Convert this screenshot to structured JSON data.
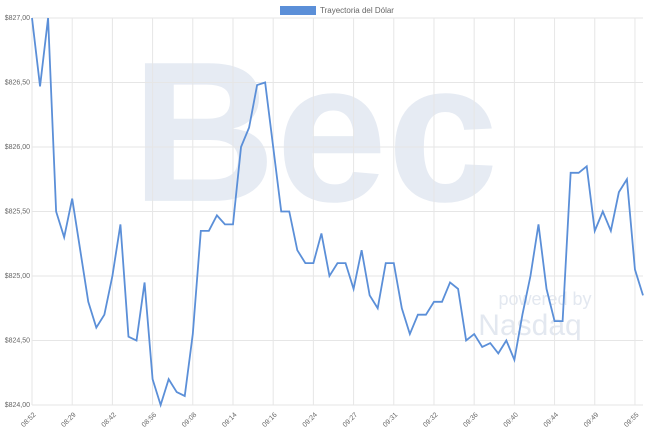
{
  "chart_data": {
    "type": "line",
    "legend": "Trayectoria del Dólar",
    "watermark": {
      "logo": "Bec",
      "tagline": "powered by",
      "brand": "Nasdaq"
    },
    "categories": [
      "08:52",
      null,
      null,
      null,
      null,
      "08:29",
      null,
      null,
      null,
      null,
      "08:42",
      null,
      null,
      null,
      null,
      "08:56",
      null,
      null,
      null,
      null,
      "09:08",
      null,
      null,
      null,
      null,
      "09:14",
      null,
      null,
      null,
      null,
      "09:16",
      null,
      null,
      null,
      null,
      "09:24",
      null,
      null,
      null,
      null,
      "09:27",
      null,
      null,
      null,
      null,
      "09:31",
      null,
      null,
      null,
      null,
      "09:32",
      null,
      null,
      null,
      null,
      "09:36",
      null,
      null,
      null,
      null,
      "09:40",
      null,
      null,
      null,
      null,
      "09:44",
      null,
      null,
      null,
      null,
      "09:49",
      null,
      null,
      null,
      null,
      "09:55",
      null
    ],
    "series": [
      {
        "name": "Trayectoria del Dólar",
        "color": "#5b8fd8",
        "values": [
          827,
          826.47,
          827,
          825.5,
          825.3,
          825.6,
          825.2,
          824.8,
          824.6,
          824.7,
          825,
          825.4,
          824.53,
          824.5,
          824.95,
          824.2,
          824,
          824.2,
          824.1,
          824.07,
          824.55,
          825.35,
          825.35,
          825.47,
          825.4,
          825.4,
          826,
          826.15,
          826.48,
          826.5,
          826,
          825.5,
          825.5,
          825.2,
          825.1,
          825.1,
          825.33,
          825,
          825.1,
          825.1,
          824.9,
          825.2,
          824.85,
          824.75,
          825.1,
          825.1,
          824.75,
          824.55,
          824.7,
          824.7,
          824.8,
          824.8,
          824.95,
          824.9,
          824.5,
          824.55,
          824.45,
          824.48,
          824.4,
          824.5,
          824.35,
          824.7,
          825,
          825.4,
          824.9,
          824.65,
          824.65,
          825.8,
          825.8,
          825.85,
          825.35,
          825.5,
          825.35,
          825.65,
          825.75,
          825.05,
          824.85
        ]
      }
    ],
    "ylim": [
      824,
      827
    ],
    "yticks": [
      {
        "value": 824,
        "label": "$824,00"
      },
      {
        "value": 824.5,
        "label": "$824,50"
      },
      {
        "value": 825,
        "label": "$825,00"
      },
      {
        "value": 825.5,
        "label": "$825,50"
      },
      {
        "value": 826,
        "label": "$826,00"
      },
      {
        "value": 826.5,
        "label": "$826,50"
      },
      {
        "value": 827,
        "label": "$827,00"
      }
    ],
    "grid": true
  }
}
